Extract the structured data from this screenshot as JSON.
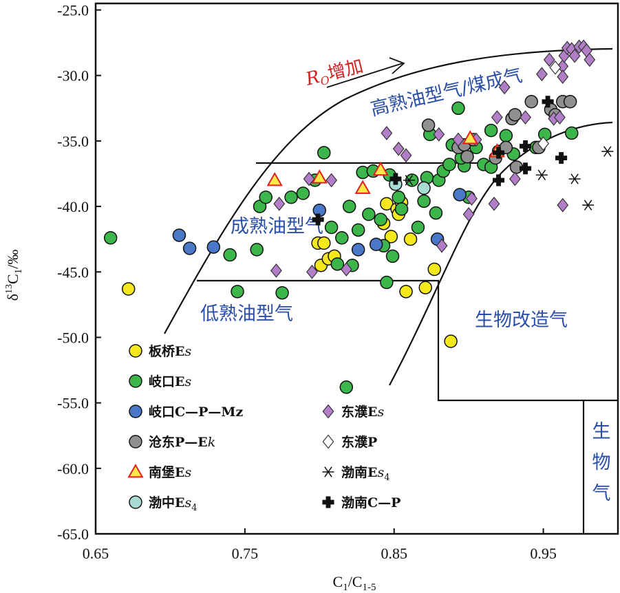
{
  "chart_data": {
    "type": "scatter",
    "title": "",
    "xlabel": "C1/C1-5",
    "ylabel": "δ13C1/‰",
    "xlim": [
      0.65,
      1.0
    ],
    "ylim": [
      -65,
      -24.5
    ],
    "x_ticks": [
      "0.65",
      "0.75",
      "0.85",
      "0.95"
    ],
    "x_tick_values": [
      0.65,
      0.75,
      0.85,
      0.95
    ],
    "y_ticks": [
      "-25.0",
      "-30.0",
      "-35.0",
      "-40.0",
      "-45.0",
      "-50.0",
      "-55.0",
      "-60.0",
      "-65.0"
    ],
    "y_tick_values": [
      -25,
      -30,
      -35,
      -40,
      -45,
      -50,
      -55,
      -60,
      -65
    ],
    "grid": false,
    "legend_position": "bottom-left inside",
    "regions": {
      "high": "高熟油型气/煤成气",
      "mature": "成熟油型气",
      "low": "低熟油型气",
      "altered": "生物改造气",
      "bio": "生物气"
    },
    "arrow_label": "增加",
    "arrow_label_prefix": "R",
    "arrow_label_sub": "O",
    "series": [
      {
        "name": "板桥Es",
        "label_main": "板桥E",
        "label_italic": "s",
        "label_sub": "",
        "marker": "circle",
        "color": "#f5e81c",
        "points": [
          [
            0.672,
            -46.3
          ],
          [
            0.799,
            -42.8
          ],
          [
            0.803,
            -42.8
          ],
          [
            0.801,
            -44.5
          ],
          [
            0.806,
            -44.0
          ],
          [
            0.81,
            -43.8
          ],
          [
            0.843,
            -41.3
          ],
          [
            0.845,
            -39.8
          ],
          [
            0.848,
            -42.3
          ],
          [
            0.852,
            -40.2
          ],
          [
            0.853,
            -40.6
          ],
          [
            0.855,
            -39.7
          ],
          [
            0.858,
            -46.5
          ],
          [
            0.861,
            -42.5
          ],
          [
            0.871,
            -46.2
          ],
          [
            0.877,
            -44.8
          ],
          [
            0.888,
            -50.3
          ]
        ]
      },
      {
        "name": "岐口Es",
        "label_main": "岐口E",
        "label_italic": "s",
        "label_sub": "",
        "marker": "circle",
        "color": "#3cb54a",
        "points": [
          [
            0.66,
            -42.4
          ],
          [
            0.74,
            -43.7
          ],
          [
            0.745,
            -46.5
          ],
          [
            0.758,
            -43.3
          ],
          [
            0.76,
            -40.0
          ],
          [
            0.764,
            -39.3
          ],
          [
            0.775,
            -46.6
          ],
          [
            0.781,
            -39.3
          ],
          [
            0.789,
            -39.0
          ],
          [
            0.797,
            -38.0
          ],
          [
            0.803,
            -35.9
          ],
          [
            0.808,
            -41.6
          ],
          [
            0.812,
            -44.4
          ],
          [
            0.815,
            -42.4
          ],
          [
            0.82,
            -40.0
          ],
          [
            0.822,
            -44.5
          ],
          [
            0.818,
            -53.8
          ],
          [
            0.826,
            -41.8
          ],
          [
            0.829,
            -37.4
          ],
          [
            0.833,
            -40.6
          ],
          [
            0.836,
            -37.3
          ],
          [
            0.841,
            -41.0
          ],
          [
            0.843,
            -43.0
          ],
          [
            0.845,
            -45.8
          ],
          [
            0.847,
            -37.6
          ],
          [
            0.849,
            -43.8
          ],
          [
            0.853,
            -39.3
          ],
          [
            0.855,
            -40.2
          ],
          [
            0.862,
            -38.0
          ],
          [
            0.866,
            -41.6
          ],
          [
            0.87,
            -39.6
          ],
          [
            0.872,
            -37.8
          ],
          [
            0.874,
            -34.5
          ],
          [
            0.878,
            -40.5
          ],
          [
            0.88,
            -38.0
          ],
          [
            0.883,
            -37.3
          ],
          [
            0.887,
            -36.8
          ],
          [
            0.889,
            -35.3
          ],
          [
            0.893,
            -32.5
          ],
          [
            0.897,
            -36.9
          ],
          [
            0.9,
            -39.3
          ],
          [
            0.905,
            -35.5
          ],
          [
            0.91,
            -36.8
          ],
          [
            0.915,
            -34.2
          ],
          [
            0.92,
            -35.8
          ],
          [
            0.925,
            -34.6
          ],
          [
            0.93,
            -36.0
          ],
          [
            0.945,
            -35.5
          ],
          [
            0.951,
            -34.5
          ],
          [
            0.969,
            -34.4
          ],
          [
            0.915,
            -37.0
          ],
          [
            0.895,
            -36.3
          ]
        ]
      },
      {
        "name": "岐口C—P—Mz",
        "label_main": "岐口C—P—Mz",
        "label_italic": "",
        "label_sub": "",
        "marker": "circle",
        "color": "#4a78c8",
        "points": [
          [
            0.706,
            -42.2
          ],
          [
            0.713,
            -43.2
          ],
          [
            0.729,
            -43.1
          ],
          [
            0.8,
            -40.3
          ],
          [
            0.826,
            -43.3
          ],
          [
            0.838,
            -42.9
          ],
          [
            0.879,
            -42.5
          ],
          [
            0.894,
            -39.1
          ]
        ]
      },
      {
        "name": "沧东P—Ek",
        "label_main": "沧东P—E",
        "label_italic": "k",
        "label_sub": "",
        "marker": "circle",
        "color": "#909090",
        "points": [
          [
            0.873,
            -33.8
          ],
          [
            0.893,
            -35.5
          ],
          [
            0.897,
            -35.3
          ],
          [
            0.899,
            -36.2
          ],
          [
            0.903,
            -34.9
          ],
          [
            0.918,
            -36.3
          ],
          [
            0.925,
            -35.5
          ],
          [
            0.929,
            -33.3
          ],
          [
            0.931,
            -33.0
          ],
          [
            0.932,
            -37.0
          ],
          [
            0.942,
            -32.0
          ],
          [
            0.947,
            -35.5
          ],
          [
            0.955,
            -32.6
          ],
          [
            0.958,
            -33.0
          ],
          [
            0.963,
            -32.0
          ],
          [
            0.968,
            -32.0
          ]
        ]
      },
      {
        "name": "南堡Es",
        "label_main": "南堡E",
        "label_italic": "s",
        "label_sub": "",
        "marker": "triangle",
        "color": "#ffe94a",
        "points": [
          [
            0.77,
            -38.0
          ],
          [
            0.8,
            -37.8
          ],
          [
            0.829,
            -38.6
          ],
          [
            0.841,
            -37.2
          ],
          [
            0.901,
            -34.8
          ],
          [
            0.919,
            -35.8
          ]
        ]
      },
      {
        "name": "渤中Es4",
        "label_main": "渤中E",
        "label_italic": "s",
        "label_sub": "4",
        "marker": "circle",
        "color": "#a8dcd3",
        "points": [
          [
            0.851,
            -38.3
          ],
          [
            0.87,
            -38.6
          ]
        ]
      },
      {
        "name": "东濮Es",
        "label_main": "东濮E",
        "label_italic": "s",
        "label_sub": "",
        "marker": "diamond",
        "color": "#b27ec8",
        "points": [
          [
            0.773,
            -39.8
          ],
          [
            0.771,
            -44.9
          ],
          [
            0.793,
            -37.9
          ],
          [
            0.795,
            -45.0
          ],
          [
            0.808,
            -38.0
          ],
          [
            0.818,
            -44.8
          ],
          [
            0.845,
            -34.4
          ],
          [
            0.853,
            -35.6
          ],
          [
            0.858,
            -36.1
          ],
          [
            0.88,
            -34.5
          ],
          [
            0.882,
            -43.0
          ],
          [
            0.893,
            -34.9
          ],
          [
            0.9,
            -40.6
          ],
          [
            0.902,
            -39.4
          ],
          [
            0.905,
            -34.9
          ],
          [
            0.917,
            -39.8
          ],
          [
            0.919,
            -33.2
          ],
          [
            0.924,
            -30.9
          ],
          [
            0.931,
            -37.9
          ],
          [
            0.938,
            -33.2
          ],
          [
            0.949,
            -29.9
          ],
          [
            0.954,
            -28.8
          ],
          [
            0.957,
            -33.3
          ],
          [
            0.961,
            -33.2
          ],
          [
            0.963,
            -29.3
          ],
          [
            0.964,
            -28.5
          ],
          [
            0.966,
            -27.9
          ],
          [
            0.969,
            -28.0
          ],
          [
            0.971,
            -28.5
          ],
          [
            0.974,
            -27.8
          ],
          [
            0.977,
            -27.8
          ],
          [
            0.979,
            -28.1
          ],
          [
            0.981,
            -28.8
          ],
          [
            0.963,
            -30.1
          ],
          [
            0.963,
            -39.9
          ]
        ]
      },
      {
        "name": "东濮P",
        "label_main": "东濮P",
        "label_italic": "",
        "label_sub": "",
        "marker": "diamond-open",
        "color": "#ffffff",
        "points": [
          [
            0.95,
            -35.2
          ],
          [
            0.958,
            -29.4
          ]
        ]
      },
      {
        "name": "渤南Es4",
        "label_main": "渤南E",
        "label_italic": "s",
        "label_sub": "4",
        "marker": "asterisk",
        "color": "#111111",
        "points": [
          [
            0.86,
            -38.0
          ],
          [
            0.949,
            -37.6
          ],
          [
            0.971,
            -37.9
          ],
          [
            0.98,
            -39.9
          ],
          [
            0.993,
            -35.8
          ]
        ]
      },
      {
        "name": "渤南C—P",
        "label_main": "渤南C—P",
        "label_italic": "",
        "label_sub": "",
        "marker": "cross",
        "color": "#111111",
        "points": [
          [
            0.799,
            -41.0
          ],
          [
            0.851,
            -37.9
          ],
          [
            0.92,
            -35.9
          ],
          [
            0.92,
            -38.0
          ],
          [
            0.938,
            -35.4
          ],
          [
            0.938,
            -37.1
          ],
          [
            0.953,
            -32.0
          ],
          [
            0.962,
            -36.3
          ]
        ]
      }
    ]
  }
}
